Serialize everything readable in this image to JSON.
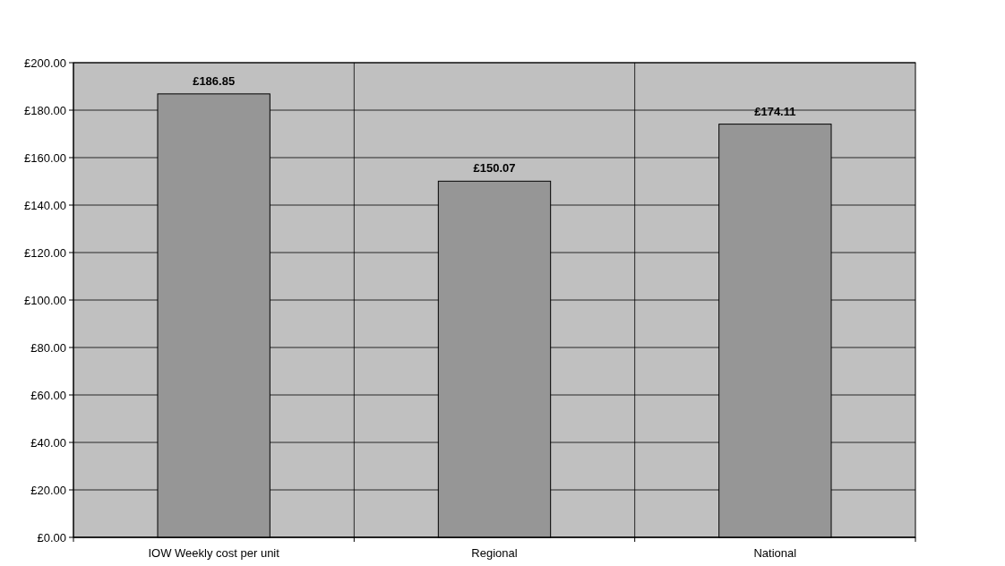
{
  "chart_data": {
    "type": "bar",
    "categories": [
      "IOW Weekly cost per unit",
      "Regional",
      "National"
    ],
    "values": [
      186.85,
      150.07,
      174.11
    ],
    "value_labels": [
      "£186.85",
      "£150.07",
      "£174.11"
    ],
    "color": "#969696",
    "ylim": [
      0,
      200
    ],
    "yticks": [
      {
        "value": 0,
        "label": "£0.00"
      },
      {
        "value": 20,
        "label": "£20.00"
      },
      {
        "value": 40,
        "label": "£40.00"
      },
      {
        "value": 60,
        "label": "£60.00"
      },
      {
        "value": 80,
        "label": "£80.00"
      },
      {
        "value": 100,
        "label": "£100.00"
      },
      {
        "value": 120,
        "label": "£120.00"
      },
      {
        "value": 140,
        "label": "£140.00"
      },
      {
        "value": 160,
        "label": "£160.00"
      },
      {
        "value": 180,
        "label": "£180.00"
      },
      {
        "value": 200,
        "label": "£200.00"
      }
    ],
    "grid": true
  }
}
